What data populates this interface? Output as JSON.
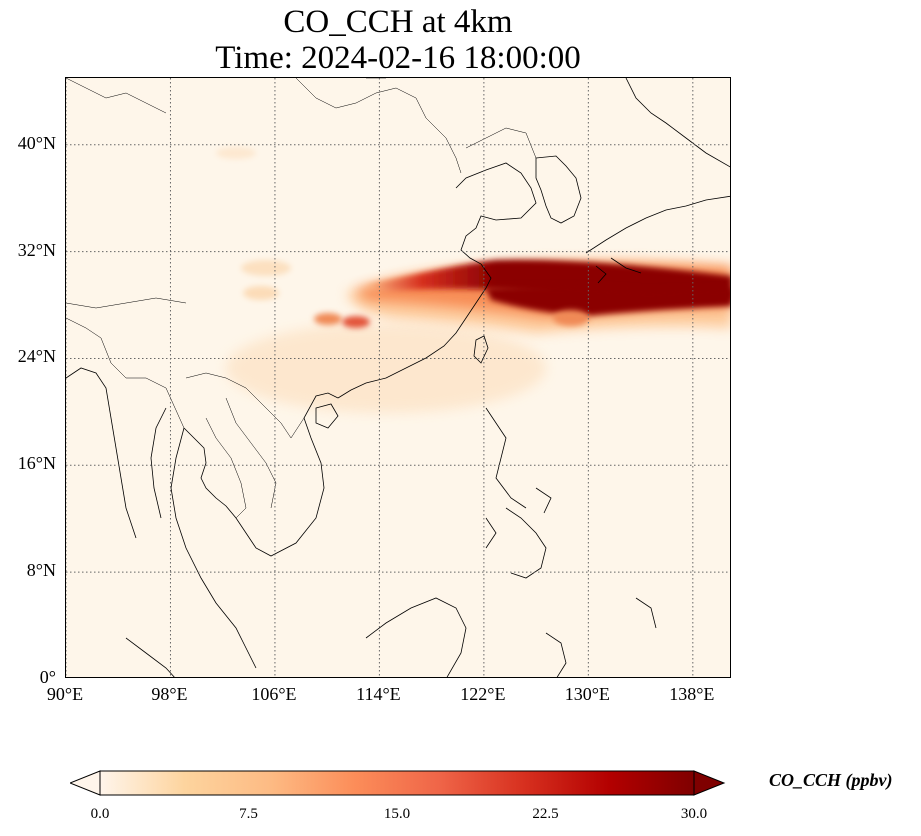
{
  "title": {
    "line1": "CO_CCH at 4km",
    "line2": "Time: 2024-02-16 18:00:00"
  },
  "map": {
    "lon_range": [
      90,
      141
    ],
    "lat_range": [
      0,
      45
    ],
    "lat_ticks": [
      {
        "value": 0,
        "label": "0°"
      },
      {
        "value": 8,
        "label": "8°N"
      },
      {
        "value": 16,
        "label": "16°N"
      },
      {
        "value": 24,
        "label": "24°N"
      },
      {
        "value": 32,
        "label": "32°N"
      },
      {
        "value": 40,
        "label": "40°N"
      }
    ],
    "lon_ticks": [
      {
        "value": 90,
        "label": "90°E"
      },
      {
        "value": 98,
        "label": "98°E"
      },
      {
        "value": 106,
        "label": "106°E"
      },
      {
        "value": 114,
        "label": "114°E"
      },
      {
        "value": 122,
        "label": "122°E"
      },
      {
        "value": 130,
        "label": "130°E"
      },
      {
        "value": 138,
        "label": "138°E"
      }
    ],
    "gridlines": true,
    "background_color": "#fef6ea"
  },
  "colorbar": {
    "label": "CO_CCH (ppbv)",
    "min": 0.0,
    "max": 30.0,
    "extend": "both",
    "ticks": [
      "0.0",
      "7.5",
      "15.0",
      "22.5",
      "30.0"
    ],
    "colormap": [
      "#fff5eb",
      "#fdd49e",
      "#fdbb84",
      "#fc8d59",
      "#ef6548",
      "#d7301f",
      "#b30000",
      "#7f0000"
    ]
  }
}
